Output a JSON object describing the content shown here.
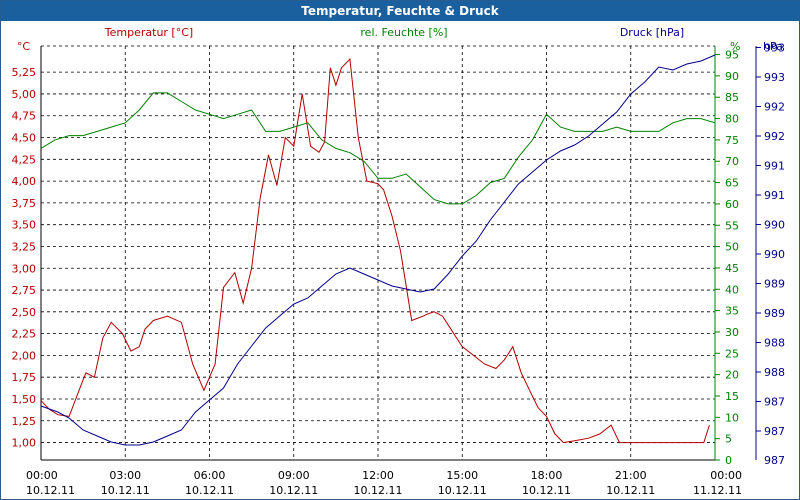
{
  "window_title": "Temperatur, Feuchte & Druck",
  "colors": {
    "temp": "#b30000",
    "humidity": "#008000",
    "pressure": "#00008b",
    "title_bg": "#1a5f9e"
  },
  "chart_data": {
    "type": "line",
    "title": "Temperatur, Feuchte & Druck",
    "axes": {
      "left": {
        "unit": "°C",
        "label": "Temperatur [°C]",
        "ylim": [
          0.8,
          5.55
        ],
        "ticks": [
          "1,00",
          "1,25",
          "1,50",
          "1,75",
          "2,00",
          "2,25",
          "2,50",
          "2,75",
          "3,00",
          "3,25",
          "3,50",
          "3,75",
          "4,00",
          "4,25",
          "4,50",
          "4,75",
          "5,00",
          "5,25"
        ]
      },
      "mid": {
        "unit": "%",
        "label": "rel. Feuchte [%]",
        "ylim": [
          0,
          97
        ],
        "ticks": [
          "0",
          "5",
          "10",
          "15",
          "20",
          "25",
          "30",
          "35",
          "40",
          "45",
          "50",
          "55",
          "60",
          "65",
          "70",
          "75",
          "80",
          "85",
          "90",
          "95"
        ]
      },
      "right": {
        "unit": "hPa",
        "label": "Druck [hPa]",
        "ylim": [
          986.7,
          993.6
        ],
        "ticks": [
          "987",
          "987",
          "988",
          "988",
          "989",
          "989",
          "990",
          "990",
          "991",
          "991",
          "992",
          "992",
          "993",
          "993"
        ]
      }
    },
    "x_ticks": [
      {
        "time": "00:00",
        "date": "10.12.11"
      },
      {
        "time": "03:00",
        "date": "10.12.11"
      },
      {
        "time": "06:00",
        "date": "10.12.11"
      },
      {
        "time": "09:00",
        "date": "10.12.11"
      },
      {
        "time": "12:00",
        "date": "10.12.11"
      },
      {
        "time": "15:00",
        "date": "10.12.11"
      },
      {
        "time": "18:00",
        "date": "10.12.11"
      },
      {
        "time": "21:00",
        "date": "10.12.11"
      },
      {
        "time": "00:00",
        "date": "11.12.11"
      }
    ],
    "series": [
      {
        "name": "Temperatur [°C]",
        "axis": "left",
        "x": [
          0,
          0.3,
          0.6,
          1.0,
          1.5,
          1.6,
          1.9,
          2.2,
          2.5,
          2.9,
          3.2,
          3.5,
          3.7,
          4.0,
          4.5,
          5.0,
          5.4,
          5.8,
          6.2,
          6.5,
          6.9,
          7.2,
          7.5,
          7.8,
          8.1,
          8.4,
          8.7,
          9.0,
          9.3,
          9.6,
          9.9,
          10.1,
          10.3,
          10.5,
          10.7,
          11.0,
          11.3,
          11.6,
          12.0,
          12.2,
          12.5,
          12.8,
          13.2,
          13.6,
          13.8,
          14.0,
          14.3,
          14.6,
          14.8,
          15.0,
          15.4,
          15.8,
          16.2,
          16.5,
          16.8,
          17.1,
          17.4,
          17.7,
          18.0,
          18.3,
          18.6,
          19.0,
          19.5,
          19.9,
          20.3,
          20.6,
          20.9,
          21.2,
          21.5,
          21.8,
          22.1,
          22.4,
          22.7,
          23.0,
          23.3,
          23.6,
          23.8
        ],
        "y": [
          1.48,
          1.38,
          1.32,
          1.3,
          1.72,
          1.8,
          1.75,
          2.2,
          2.38,
          2.25,
          2.05,
          2.1,
          2.3,
          2.4,
          2.45,
          2.38,
          1.9,
          1.6,
          1.9,
          2.78,
          2.95,
          2.6,
          3.0,
          3.8,
          4.3,
          3.95,
          4.5,
          4.4,
          5.0,
          4.4,
          4.33,
          4.45,
          5.3,
          5.1,
          5.3,
          5.4,
          4.5,
          4.0,
          3.97,
          3.9,
          3.6,
          3.2,
          2.4,
          2.45,
          2.48,
          2.5,
          2.45,
          2.3,
          2.2,
          2.1,
          2.0,
          1.9,
          1.85,
          1.95,
          2.1,
          1.8,
          1.6,
          1.4,
          1.3,
          1.1,
          1.0,
          1.02,
          1.05,
          1.1,
          1.2,
          1.0,
          1.0,
          1.0,
          1.0,
          1.0,
          1.0,
          1.0,
          1.0,
          1.0,
          1.0,
          1.0,
          1.2
        ]
      },
      {
        "name": "rel. Feuchte [%]",
        "axis": "mid",
        "x": [
          0,
          0.5,
          1.0,
          1.5,
          2.0,
          2.5,
          3.0,
          3.5,
          4.0,
          4.5,
          5.0,
          5.5,
          6.0,
          6.5,
          7.0,
          7.5,
          8.0,
          8.5,
          9.0,
          9.5,
          10.0,
          10.5,
          11.0,
          11.5,
          12.0,
          12.5,
          13.0,
          13.5,
          14.0,
          14.5,
          15.0,
          15.5,
          16.0,
          16.5,
          17.0,
          17.5,
          18.0,
          18.5,
          19.0,
          19.5,
          20.0,
          20.5,
          21.0,
          21.5,
          22.0,
          22.5,
          23.0,
          23.5,
          24.0
        ],
        "y": [
          73,
          75,
          76,
          76,
          77,
          78,
          79,
          82,
          86,
          86,
          84,
          82,
          81,
          80,
          81,
          82,
          77,
          77,
          78,
          79,
          75,
          73,
          72,
          70,
          66,
          66,
          67,
          64,
          61,
          60,
          60,
          62,
          65,
          66,
          71,
          75,
          81,
          78,
          77,
          77,
          77,
          78,
          77,
          77,
          77,
          79,
          80,
          80,
          79
        ]
      },
      {
        "name": "Druck [hPa]",
        "axis": "right",
        "x": [
          0,
          0.3,
          0.6,
          1.0,
          1.5,
          2.0,
          2.5,
          3.0,
          3.5,
          4.0,
          4.5,
          5.0,
          5.5,
          6.0,
          6.5,
          7.0,
          7.5,
          8.0,
          8.5,
          9.0,
          9.5,
          10.0,
          10.5,
          11.0,
          11.5,
          12.0,
          12.5,
          13.0,
          13.5,
          14.0,
          14.5,
          15.0,
          15.5,
          16.0,
          16.5,
          17.0,
          17.5,
          18.0,
          18.5,
          19.0,
          19.5,
          20.0,
          20.5,
          21.0,
          21.5,
          22.0,
          22.5,
          23.0,
          23.5,
          24.0
        ],
        "y": [
          987.6,
          987.55,
          987.5,
          987.4,
          987.2,
          987.1,
          987.0,
          986.95,
          986.95,
          987.0,
          987.1,
          987.2,
          987.5,
          987.7,
          987.9,
          988.3,
          988.6,
          988.9,
          989.1,
          989.3,
          989.4,
          989.6,
          989.8,
          989.9,
          989.8,
          989.7,
          989.6,
          989.55,
          989.5,
          989.55,
          989.8,
          990.1,
          990.35,
          990.7,
          991.0,
          991.3,
          991.5,
          991.7,
          991.85,
          991.95,
          992.1,
          992.3,
          992.5,
          992.8,
          993.0,
          993.25,
          993.2,
          993.3,
          993.35,
          993.45
        ]
      }
    ]
  }
}
